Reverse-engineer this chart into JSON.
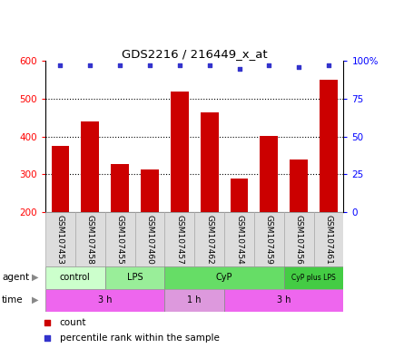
{
  "title": "GDS2216 / 216449_x_at",
  "samples": [
    "GSM107453",
    "GSM107458",
    "GSM107455",
    "GSM107460",
    "GSM107457",
    "GSM107462",
    "GSM107454",
    "GSM107459",
    "GSM107456",
    "GSM107461"
  ],
  "counts": [
    375,
    440,
    328,
    313,
    518,
    465,
    290,
    401,
    340,
    549
  ],
  "percentile_ranks": [
    97,
    97,
    97,
    97,
    97,
    97,
    95,
    97,
    96,
    97
  ],
  "ymin": 200,
  "ymax": 600,
  "yticks": [
    200,
    300,
    400,
    500,
    600
  ],
  "bar_color": "#cc0000",
  "dot_color": "#3333cc",
  "agent_groups": [
    {
      "label": "control",
      "start": 0,
      "end": 2,
      "color": "#ccffcc"
    },
    {
      "label": "LPS",
      "start": 2,
      "end": 4,
      "color": "#99ee99"
    },
    {
      "label": "CyP",
      "start": 4,
      "end": 8,
      "color": "#66dd66"
    },
    {
      "label": "CyP plus LPS",
      "start": 8,
      "end": 10,
      "color": "#44cc44"
    }
  ],
  "time_groups": [
    {
      "label": "3 h",
      "start": 0,
      "end": 4,
      "color": "#ee66ee"
    },
    {
      "label": "1 h",
      "start": 4,
      "end": 6,
      "color": "#dd99dd"
    },
    {
      "label": "3 h",
      "start": 6,
      "end": 10,
      "color": "#ee66ee"
    }
  ],
  "right_yticks": [
    0,
    25,
    50,
    75,
    100
  ],
  "right_yticklabels": [
    "0",
    "25",
    "50",
    "75",
    "100%"
  ],
  "legend_count_color": "#cc0000",
  "legend_dot_color": "#3333cc"
}
